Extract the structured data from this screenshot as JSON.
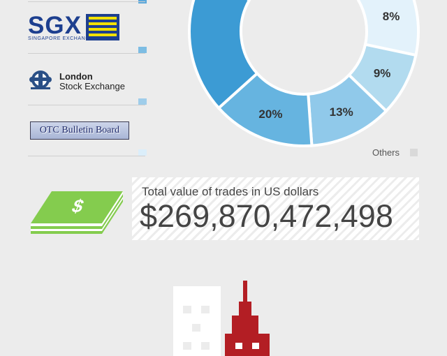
{
  "exchanges": [
    {
      "name": "sgx",
      "word": "SGX",
      "subtitle": "SINGAPORE EXCHANGE",
      "swatch_color": "#7dbde3"
    },
    {
      "name": "london",
      "title": "London",
      "subtitle": "Stock Exchange",
      "swatch_color": "#9fcdea"
    },
    {
      "name": "otc",
      "title": "OTC Bulletin Board",
      "swatch_color": "#dbeefa"
    }
  ],
  "top_swatch_color": "#5aa8dc",
  "chart_data": {
    "type": "pie",
    "labels": [
      "8%",
      "9%",
      "13%",
      "20%"
    ],
    "slices": [
      {
        "value": 8,
        "label": "8%",
        "color": "#e3f2fb"
      },
      {
        "value": 9,
        "label": "9%",
        "color": "#b2dbef"
      },
      {
        "value": 13,
        "label": "13%",
        "color": "#90c9ea"
      },
      {
        "value": 20,
        "label": "20%",
        "color": "#66b4e0"
      },
      {
        "value": 14,
        "label": "",
        "color": "#3c9bd4"
      }
    ],
    "others_label": "Others",
    "others_color": "#d9d9d9"
  },
  "trades": {
    "label": "Total value of trades in US dollars",
    "value": "$269,870,472,498",
    "money_icon_color": "#84cc4e"
  },
  "buildings": {
    "left_color": "#ffffff",
    "right_color": "#b31e24"
  }
}
